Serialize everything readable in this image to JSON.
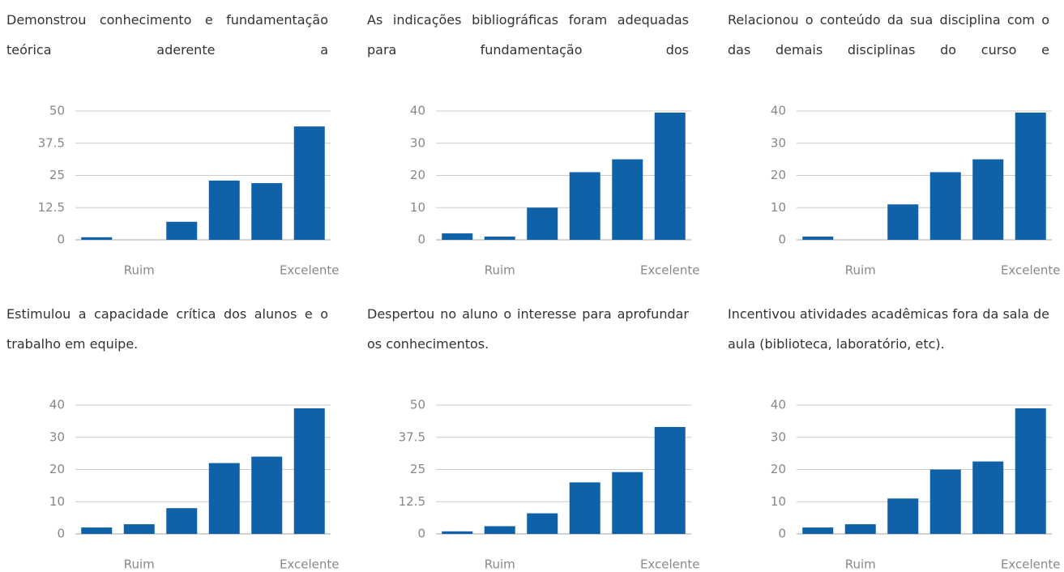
{
  "chart_data": [
    {
      "type": "bar",
      "title": "Demonstrou conhecimento e fundamentação teórica aderente a",
      "categories": [
        null,
        "Ruim",
        null,
        null,
        null,
        "Excelente"
      ],
      "values": [
        1,
        0,
        7,
        23,
        22,
        44
      ],
      "color": "#0f62a8",
      "ylim": [
        0,
        50
      ],
      "yticks": [
        0,
        12.5,
        25,
        37.5,
        50
      ],
      "grid": true
    },
    {
      "type": "bar",
      "title": "As indicações bibliográficas foram adequadas para fundamentação dos",
      "categories": [
        null,
        "Ruim",
        null,
        null,
        null,
        "Excelente"
      ],
      "values": [
        2,
        1,
        10,
        21,
        25,
        39.5
      ],
      "color": "#0f62a8",
      "ylim": [
        0,
        40
      ],
      "yticks": [
        0,
        10,
        20,
        30,
        40
      ],
      "grid": true
    },
    {
      "type": "bar",
      "title": "Relacionou o conteúdo da sua disciplina com o das demais disciplinas do curso e",
      "categories": [
        null,
        "Ruim",
        null,
        null,
        null,
        "Excelente"
      ],
      "values": [
        1,
        0,
        11,
        21,
        25,
        39.5
      ],
      "color": "#0f62a8",
      "ylim": [
        0,
        40
      ],
      "yticks": [
        0,
        10,
        20,
        30,
        40
      ],
      "grid": true
    },
    {
      "type": "bar",
      "title": "Estimulou a capacidade crítica dos alunos e o trabalho em equipe.",
      "categories": [
        null,
        "Ruim",
        null,
        null,
        null,
        "Excelente"
      ],
      "values": [
        2,
        3,
        8,
        22,
        24,
        39
      ],
      "color": "#0f62a8",
      "ylim": [
        0,
        40
      ],
      "yticks": [
        0,
        10,
        20,
        30,
        40
      ],
      "grid": true
    },
    {
      "type": "bar",
      "title": "Despertou no aluno o interesse para aprofundar os conhecimentos.",
      "categories": [
        null,
        "Ruim",
        null,
        null,
        null,
        "Excelente"
      ],
      "values": [
        1,
        3,
        8,
        20,
        24,
        41.5
      ],
      "color": "#0f62a8",
      "ylim": [
        0,
        50
      ],
      "yticks": [
        0,
        12.5,
        25,
        37.5,
        50
      ],
      "grid": true
    },
    {
      "type": "bar",
      "title": "Incentivou atividades acadêmicas fora da sala de aula (biblioteca, laboratório, etc).",
      "categories": [
        null,
        "Ruim",
        null,
        null,
        null,
        "Excelente"
      ],
      "values": [
        2,
        3,
        11,
        20,
        22.5,
        39
      ],
      "color": "#0f62a8",
      "ylim": [
        0,
        40
      ],
      "yticks": [
        0,
        10,
        20,
        30,
        40
      ],
      "grid": true
    }
  ]
}
